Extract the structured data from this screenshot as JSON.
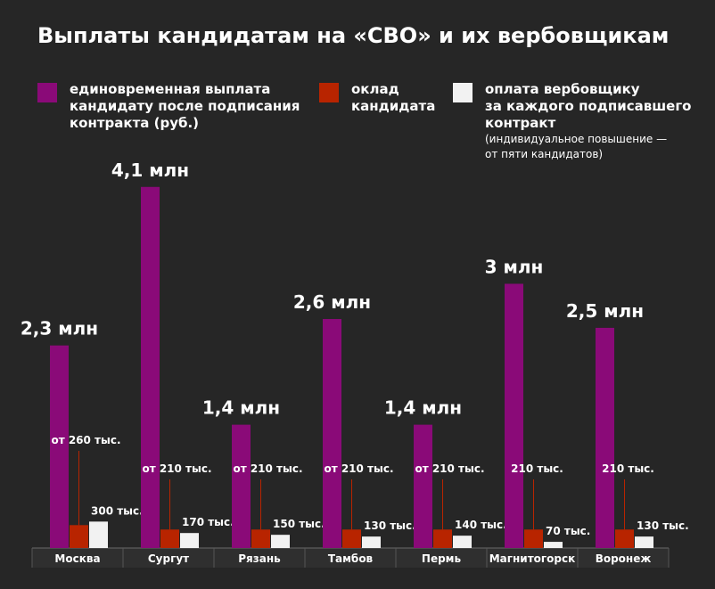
{
  "chart_data": {
    "type": "bar",
    "title": "Выплаты кандидатам на «СВО» и их вербовщикам",
    "categories": [
      "Москва",
      "Сургут",
      "Рязань",
      "Тамбов",
      "Пермь",
      "Магнитогорск",
      "Воронеж"
    ],
    "ylim": [
      0,
      4.3
    ],
    "units": "млн руб.",
    "series": [
      {
        "name": "единовременная выплата кандидату после подписания контракта (руб.)",
        "color": "#8a0a78",
        "values": [
          2.3,
          4.1,
          1.4,
          2.6,
          1.4,
          3.0,
          2.5
        ],
        "labels": [
          "2,3 млн",
          "4,1 млн",
          "1,4 млн",
          "2,6 млн",
          "1,4 млн",
          "3 млн",
          "2,5 млн"
        ]
      },
      {
        "name": "оклад кандидата",
        "color": "#b82400",
        "values": [
          0.26,
          0.21,
          0.21,
          0.21,
          0.21,
          0.21,
          0.21
        ],
        "labels": [
          "от 260 тыс.",
          "от 210 тыс.",
          "от 210 тыс.",
          "от 210 тыс.",
          "от 210 тыс.",
          "210 тыс.",
          "210 тыс."
        ]
      },
      {
        "name": "оплата вербовщику за каждого подписавшего контракт",
        "note": "(индивидуальное повышение — от пяти кандидатов)",
        "color": "#f2f2f2",
        "values": [
          0.3,
          0.17,
          0.15,
          0.13,
          0.14,
          0.07,
          0.13
        ],
        "labels": [
          "300 тыс.",
          "170 тыс.",
          "150 тыс.",
          "130 тыс.",
          "140 тыс.",
          "70 тыс.",
          "130 тыс."
        ]
      }
    ],
    "legend": {
      "position": "top",
      "items": [
        {
          "lines": [
            "единовременная выплата",
            "кандидату после подписания",
            "контракта (руб.)"
          ]
        },
        {
          "lines": [
            "оклад",
            "кандидата"
          ]
        },
        {
          "lines": [
            "оплата вербовщику",
            "за каждого подписавшего",
            "контракт"
          ],
          "note_lines": [
            "(индивидуальное повышение —",
            "от пяти кандидатов)"
          ]
        }
      ]
    }
  }
}
